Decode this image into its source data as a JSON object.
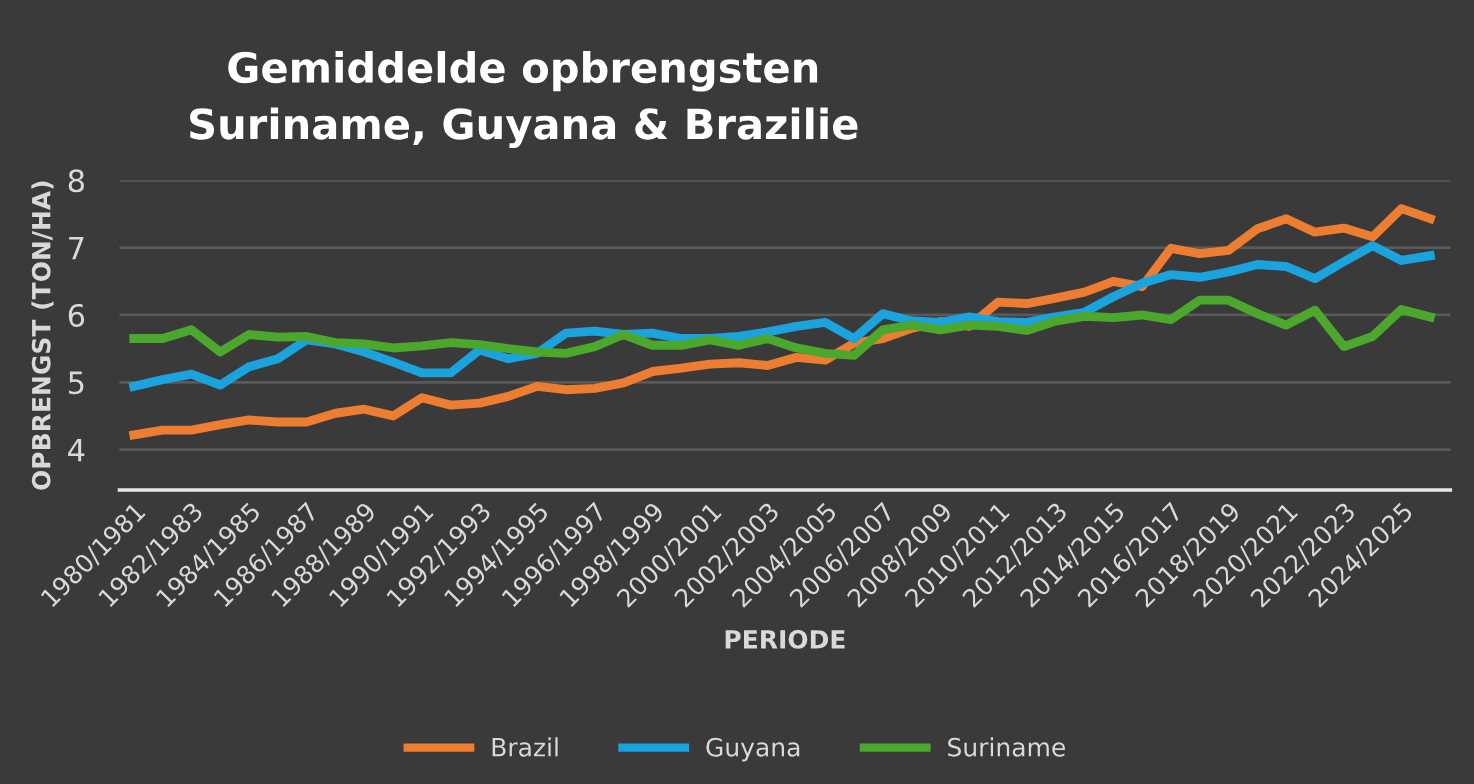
{
  "chart_data": {
    "type": "line",
    "title": "Gemiddelde opbrengsten Suriname, Guyana & Brazilie",
    "xlabel": "PERIODE",
    "ylabel": "OPBRENGST (TON/HA)",
    "categories": [
      "1980/1981",
      null,
      "1982/1983",
      null,
      "1984/1985",
      null,
      "1986/1987",
      null,
      "1988/1989",
      null,
      "1990/1991",
      null,
      "1992/1993",
      null,
      "1994/1995",
      null,
      "1996/1997",
      null,
      "1998/1999",
      null,
      "2000/2001",
      null,
      "2002/2003",
      null,
      "2004/2005",
      null,
      "2006/2007",
      null,
      "2008/2009",
      null,
      "2010/2011",
      null,
      "2012/2013",
      null,
      "2014/2015",
      null,
      "2016/2017",
      null,
      "2018/2019",
      null,
      "2020/2021",
      null,
      "2022/2023",
      null,
      "2024/2025",
      null
    ],
    "series": [
      {
        "name": "Brazil",
        "color": "#ed7d31",
        "values": [
          4.22,
          4.29,
          4.29,
          4.37,
          4.44,
          4.41,
          4.41,
          4.54,
          4.6,
          4.5,
          4.77,
          4.66,
          4.69,
          4.79,
          4.94,
          4.89,
          4.91,
          4.99,
          5.16,
          5.21,
          5.27,
          5.29,
          5.25,
          5.37,
          5.33,
          5.58,
          5.65,
          5.8,
          5.9,
          5.83,
          6.19,
          6.17,
          6.25,
          6.34,
          6.5,
          6.42,
          6.99,
          6.91,
          6.96,
          7.28,
          7.43,
          7.23,
          7.29,
          7.16,
          7.58,
          7.43
        ]
      },
      {
        "name": "Guyana",
        "color": "#1ba3dd",
        "values": [
          4.94,
          5.04,
          5.12,
          4.96,
          5.23,
          5.35,
          5.63,
          5.57,
          5.45,
          5.3,
          5.14,
          5.14,
          5.48,
          5.35,
          5.43,
          5.73,
          5.76,
          5.71,
          5.73,
          5.65,
          5.65,
          5.68,
          5.75,
          5.83,
          5.89,
          5.65,
          6.02,
          5.91,
          5.89,
          5.97,
          5.9,
          5.89,
          5.97,
          6.04,
          6.27,
          6.47,
          6.6,
          6.56,
          6.64,
          6.75,
          6.72,
          6.54,
          6.79,
          7.03,
          6.81,
          6.88
        ]
      },
      {
        "name": "Suriname",
        "color": "#4ca72d",
        "values": [
          5.65,
          5.65,
          5.78,
          5.45,
          5.71,
          5.67,
          5.68,
          5.59,
          5.57,
          5.51,
          5.54,
          5.59,
          5.56,
          5.5,
          5.45,
          5.43,
          5.53,
          5.71,
          5.55,
          5.55,
          5.63,
          5.55,
          5.65,
          5.51,
          5.43,
          5.4,
          5.78,
          5.85,
          5.78,
          5.85,
          5.83,
          5.77,
          5.91,
          5.98,
          5.96,
          6.0,
          5.93,
          6.22,
          6.22,
          6.02,
          5.85,
          6.07,
          5.53,
          5.68,
          6.08,
          5.97
        ]
      }
    ],
    "ylim": [
      3.4,
      8
    ],
    "yticks": [
      4,
      5,
      6,
      7,
      8
    ],
    "grid": "y",
    "legend": "bottom",
    "marker": "none",
    "line_style": "solid"
  }
}
